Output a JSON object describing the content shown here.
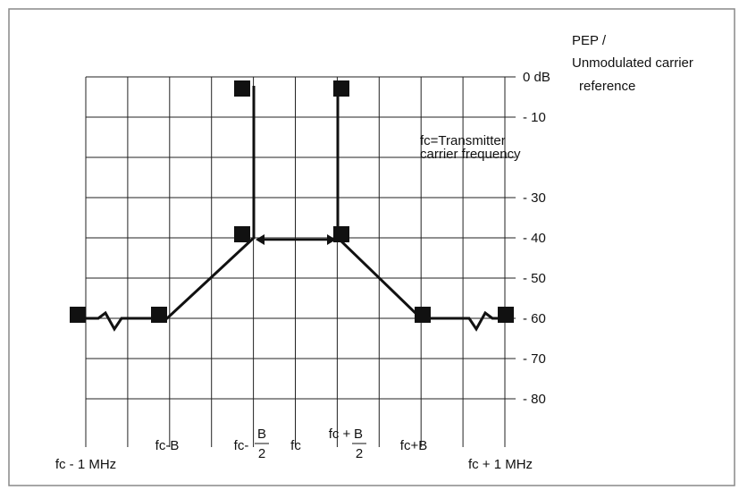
{
  "legend": {
    "lines": [
      "PEP /",
      "Unmodulated carrier",
      "reference"
    ]
  },
  "note": {
    "lines": [
      "fc=Transmitter",
      "carrier frequency"
    ]
  },
  "y_labels": [
    "0 dB",
    "- 10",
    "- 30",
    "- 40",
    "- 50",
    "- 60",
    "- 70",
    "- 80"
  ],
  "x_labels": {
    "fc_minus_1mhz": "fc - 1 MHz",
    "fc_minus_b": "fc-B",
    "fc_minus_half_b": {
      "prefix": "fc-",
      "numerator": "B",
      "denominator": "2"
    },
    "fc": "fc",
    "fc_plus_half_b": {
      "prefix": "fc +",
      "numerator": "B",
      "denominator": "2"
    },
    "fc_plus_b": "fc+B",
    "fc_plus_1mhz": "fc + 1 MHz"
  }
}
